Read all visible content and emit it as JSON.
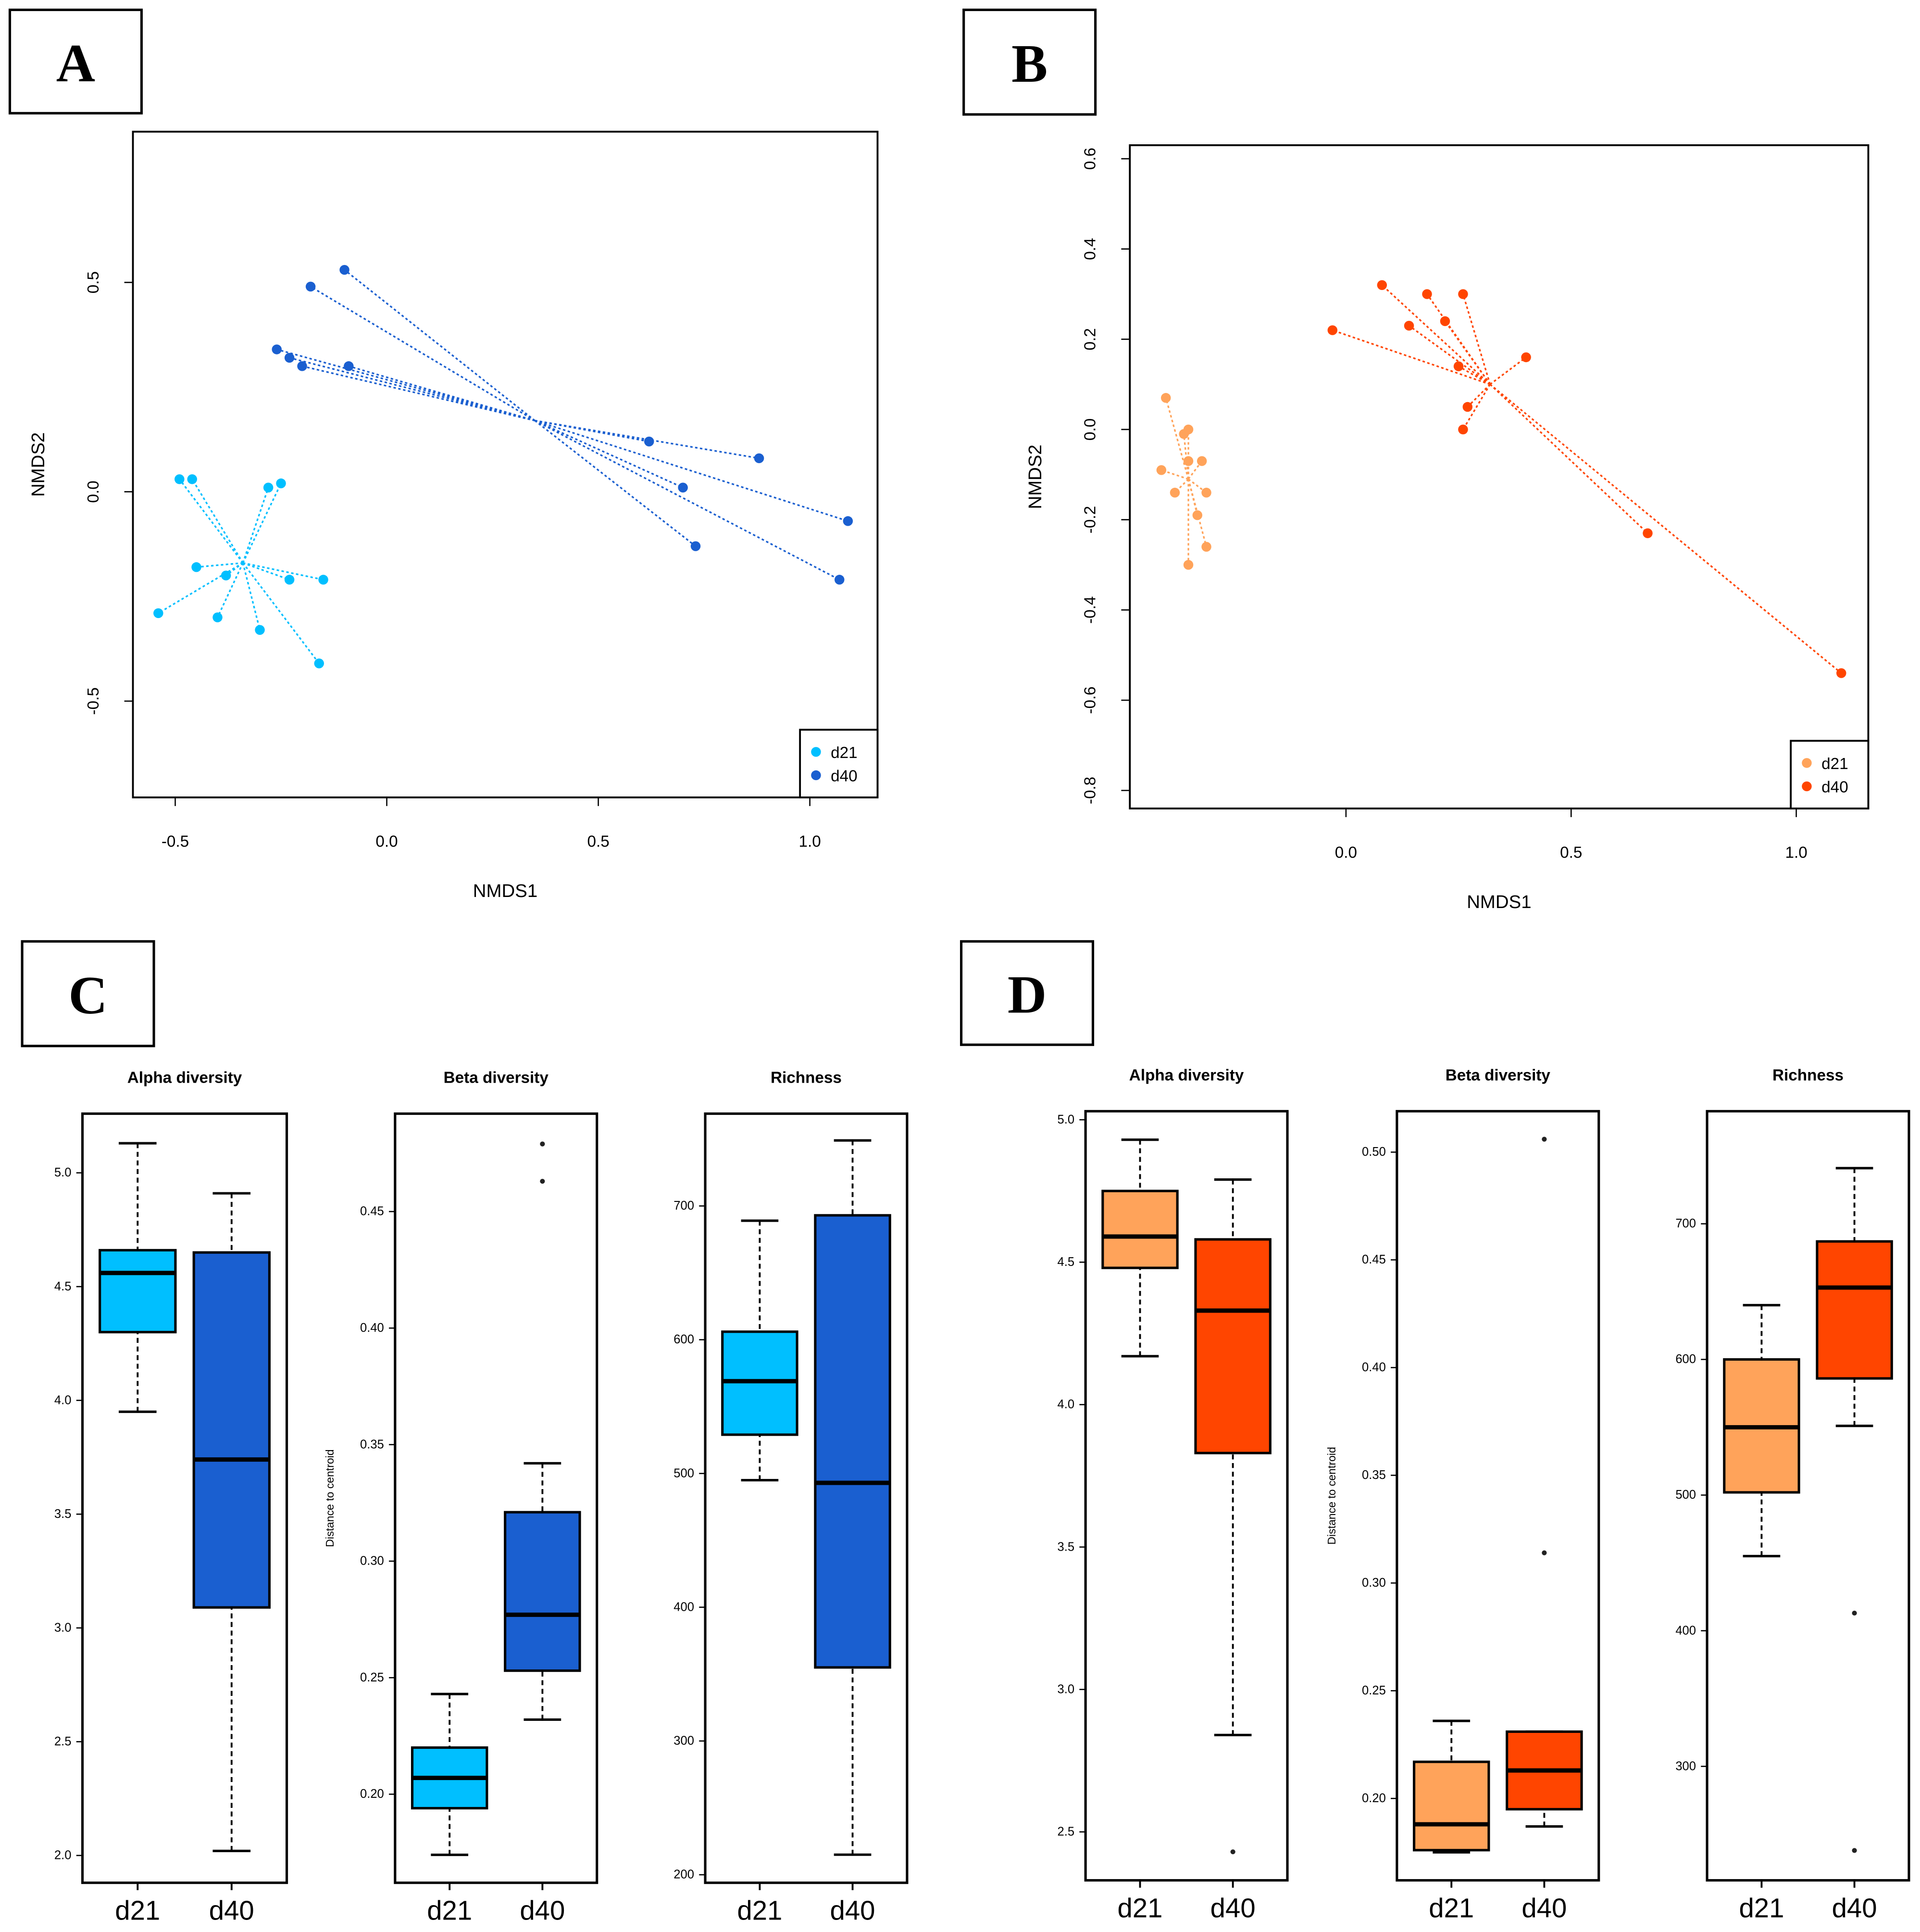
{
  "panel_labels": [
    "A",
    "B",
    "C",
    "D"
  ],
  "chart_data": [
    {
      "panel": "A",
      "type": "scatter",
      "xlabel": "NMDS1",
      "ylabel": "NMDS2",
      "xlim": [
        -0.6,
        1.16
      ],
      "ylim": [
        -0.73,
        0.86
      ],
      "xticks": [
        -0.5,
        0.0,
        0.5,
        1.0
      ],
      "xtick_labels": [
        "-0.5",
        "0.0",
        "0.5",
        "1.0"
      ],
      "yticks": [
        -0.5,
        0.0,
        0.5
      ],
      "ytick_labels": [
        "-0.5",
        "0.0",
        "0.5"
      ],
      "legend_placement": "bottom-right",
      "spider": true,
      "series": [
        {
          "name": "d21",
          "color": "#00BFFF",
          "centroid": [
            -0.34,
            -0.17
          ],
          "points": [
            [
              -0.49,
              0.03
            ],
            [
              -0.46,
              0.03
            ],
            [
              -0.28,
              0.01
            ],
            [
              -0.25,
              0.02
            ],
            [
              -0.45,
              -0.18
            ],
            [
              -0.38,
              -0.2
            ],
            [
              -0.23,
              -0.21
            ],
            [
              -0.15,
              -0.21
            ],
            [
              -0.54,
              -0.29
            ],
            [
              -0.4,
              -0.3
            ],
            [
              -0.3,
              -0.33
            ],
            [
              -0.16,
              -0.41
            ]
          ]
        },
        {
          "name": "d40",
          "color": "#1A5FD0",
          "centroid": [
            0.35,
            0.17
          ],
          "points": [
            [
              -0.1,
              0.53
            ],
            [
              -0.18,
              0.49
            ],
            [
              -0.26,
              0.34
            ],
            [
              -0.23,
              0.32
            ],
            [
              -0.2,
              0.3
            ],
            [
              -0.09,
              0.3
            ],
            [
              0.62,
              0.12
            ],
            [
              0.88,
              0.08
            ],
            [
              0.7,
              0.01
            ],
            [
              1.09,
              -0.07
            ],
            [
              0.73,
              -0.13
            ],
            [
              1.07,
              -0.21
            ]
          ]
        }
      ]
    },
    {
      "panel": "B",
      "type": "scatter",
      "xlabel": "NMDS1",
      "ylabel": "NMDS2",
      "xlim": [
        -0.48,
        1.16
      ],
      "ylim": [
        -0.84,
        0.63
      ],
      "xticks": [
        0.0,
        0.5,
        1.0
      ],
      "xtick_labels": [
        "0.0",
        "0.5",
        "1.0"
      ],
      "yticks": [
        -0.8,
        -0.6,
        -0.4,
        -0.2,
        0.0,
        0.2,
        0.4,
        0.6
      ],
      "ytick_labels": [
        "-0.8",
        "-0.6",
        "-0.4",
        "-0.2",
        "0.0",
        "0.2",
        "0.4",
        "0.6"
      ],
      "legend_placement": "bottom-right",
      "spider": true,
      "series": [
        {
          "name": "d21",
          "color": "#FFA35A",
          "centroid": [
            -0.35,
            -0.11
          ],
          "points": [
            [
              -0.4,
              0.07
            ],
            [
              -0.41,
              -0.09
            ],
            [
              -0.38,
              -0.14
            ],
            [
              -0.36,
              -0.01
            ],
            [
              -0.35,
              0.0
            ],
            [
              -0.35,
              -0.07
            ],
            [
              -0.32,
              -0.07
            ],
            [
              -0.31,
              -0.14
            ],
            [
              -0.33,
              -0.19
            ],
            [
              -0.31,
              -0.26
            ],
            [
              -0.35,
              -0.3
            ]
          ]
        },
        {
          "name": "d40",
          "color": "#FF4500",
          "centroid": [
            0.32,
            0.1
          ],
          "points": [
            [
              -0.03,
              0.22
            ],
            [
              0.08,
              0.32
            ],
            [
              0.18,
              0.3
            ],
            [
              0.26,
              0.3
            ],
            [
              0.14,
              0.23
            ],
            [
              0.22,
              0.24
            ],
            [
              0.25,
              0.14
            ],
            [
              0.4,
              0.16
            ],
            [
              0.27,
              0.05
            ],
            [
              0.26,
              0.0
            ],
            [
              0.67,
              -0.23
            ],
            [
              1.1,
              -0.54
            ]
          ]
        }
      ]
    },
    {
      "panel": "C",
      "type": "boxplot",
      "categories": [
        "d21",
        "d40"
      ],
      "colors": [
        "#00BFFF",
        "#1A5FD0"
      ],
      "plots": [
        {
          "title": "Alpha diversity",
          "ylabel": "",
          "ylim": [
            1.88,
            5.26
          ],
          "yticks": [
            "2.0",
            "2.5",
            "3.0",
            "3.5",
            "4.0",
            "4.5",
            "5.0"
          ],
          "boxes": [
            {
              "lower": 3.95,
              "q1": 4.3,
              "median": 4.56,
              "q3": 4.66,
              "upper": 5.13,
              "outliers": []
            },
            {
              "lower": 2.02,
              "q1": 3.09,
              "median": 3.74,
              "q3": 4.65,
              "upper": 4.91,
              "outliers": []
            }
          ]
        },
        {
          "title": "Beta diversity",
          "ylabel": "Distance to centroid",
          "ylim": [
            0.162,
            0.492
          ],
          "yticks": [
            "0.20",
            "0.25",
            "0.30",
            "0.35",
            "0.40",
            "0.45"
          ],
          "boxes": [
            {
              "lower": 0.174,
              "q1": 0.194,
              "median": 0.207,
              "q3": 0.22,
              "upper": 0.243,
              "outliers": []
            },
            {
              "lower": 0.232,
              "q1": 0.253,
              "median": 0.277,
              "q3": 0.321,
              "upper": 0.342,
              "outliers": [
                0.463,
                0.479
              ]
            }
          ]
        },
        {
          "title": "Richness",
          "ylabel": "",
          "ylim": [
            194,
            769
          ],
          "yticks": [
            "200",
            "300",
            "400",
            "500",
            "600",
            "700"
          ],
          "boxes": [
            {
              "lower": 495,
              "q1": 529,
              "median": 569,
              "q3": 606,
              "upper": 689,
              "outliers": []
            },
            {
              "lower": 215,
              "q1": 355,
              "median": 493,
              "q3": 693,
              "upper": 749,
              "outliers": []
            }
          ]
        }
      ]
    },
    {
      "panel": "D",
      "type": "boxplot",
      "categories": [
        "d21",
        "d40"
      ],
      "colors": [
        "#FFA35A",
        "#FF4500"
      ],
      "plots": [
        {
          "title": "Alpha diversity",
          "ylabel": "",
          "ylim": [
            2.33,
            5.03
          ],
          "yticks": [
            "2.5",
            "3.0",
            "3.5",
            "4.0",
            "4.5",
            "5.0"
          ],
          "boxes": [
            {
              "lower": 4.17,
              "q1": 4.48,
              "median": 4.59,
              "q3": 4.75,
              "upper": 4.93,
              "outliers": []
            },
            {
              "lower": 2.84,
              "q1": 3.83,
              "median": 4.33,
              "q3": 4.58,
              "upper": 4.79,
              "outliers": [
                2.43
              ]
            }
          ]
        },
        {
          "title": "Beta diversity",
          "ylabel": "Distance to centroid",
          "ylim": [
            0.162,
            0.519
          ],
          "yticks": [
            "0.20",
            "0.25",
            "0.30",
            "0.35",
            "0.40",
            "0.45",
            "0.50"
          ],
          "boxes": [
            {
              "lower": 0.175,
              "q1": 0.176,
              "median": 0.188,
              "q3": 0.217,
              "upper": 0.236,
              "outliers": []
            },
            {
              "lower": 0.187,
              "q1": 0.195,
              "median": 0.213,
              "q3": 0.231,
              "upper": 0.231,
              "outliers": [
                0.314,
                0.506
              ]
            }
          ]
        },
        {
          "title": "Richness",
          "ylabel": "",
          "ylim": [
            216,
            783
          ],
          "yticks": [
            "300",
            "400",
            "500",
            "600",
            "700"
          ],
          "boxes": [
            {
              "lower": 455,
              "q1": 502,
              "median": 550,
              "q3": 600,
              "upper": 640,
              "outliers": []
            },
            {
              "lower": 551,
              "q1": 586,
              "median": 653,
              "q3": 687,
              "upper": 741,
              "outliers": [
                238,
                413
              ]
            }
          ]
        }
      ]
    }
  ]
}
